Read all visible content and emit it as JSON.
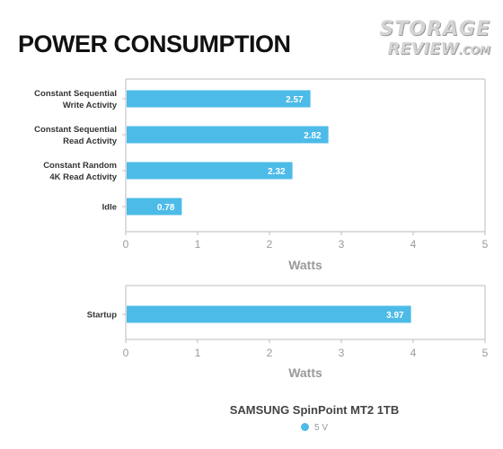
{
  "title": "POWER CONSUMPTION",
  "logo": {
    "line1": "STORAGE",
    "line2": "REVIEW",
    "line2_suffix": ".COM"
  },
  "colors": {
    "bar": "#4dbbe8",
    "axis": "#bbbbbb",
    "tick_label": "#9a9a9a",
    "label": "#333333"
  },
  "chart_data": [
    {
      "type": "bar",
      "orientation": "horizontal",
      "categories": [
        [
          "Constant Sequential",
          "Write Activity"
        ],
        [
          "Constant Sequential",
          "Read Activity"
        ],
        [
          "Constant Random",
          "4K Read Activity"
        ],
        [
          "Idle"
        ]
      ],
      "series": [
        {
          "name": "5 V",
          "values": [
            2.57,
            2.82,
            2.32,
            0.78
          ]
        }
      ],
      "data_labels": [
        "2.57",
        "2.82",
        "2.32",
        "0.78"
      ],
      "xlabel": "Watts",
      "xlim": [
        0,
        5
      ],
      "xticks": [
        "0",
        "1",
        "2",
        "3",
        "4",
        "5"
      ],
      "grid": false
    },
    {
      "type": "bar",
      "orientation": "horizontal",
      "categories": [
        [
          "Startup"
        ]
      ],
      "series": [
        {
          "name": "5 V",
          "values": [
            3.97
          ]
        }
      ],
      "data_labels": [
        "3.97"
      ],
      "xlabel": "Watts",
      "xlim": [
        0,
        5
      ],
      "xticks": [
        "0",
        "1",
        "2",
        "3",
        "4",
        "5"
      ],
      "grid": false
    }
  ],
  "legend": {
    "title": "SAMSUNG SpinPoint MT2 1TB",
    "placement": "bottom-center",
    "items": [
      {
        "label": "5 V"
      }
    ]
  }
}
